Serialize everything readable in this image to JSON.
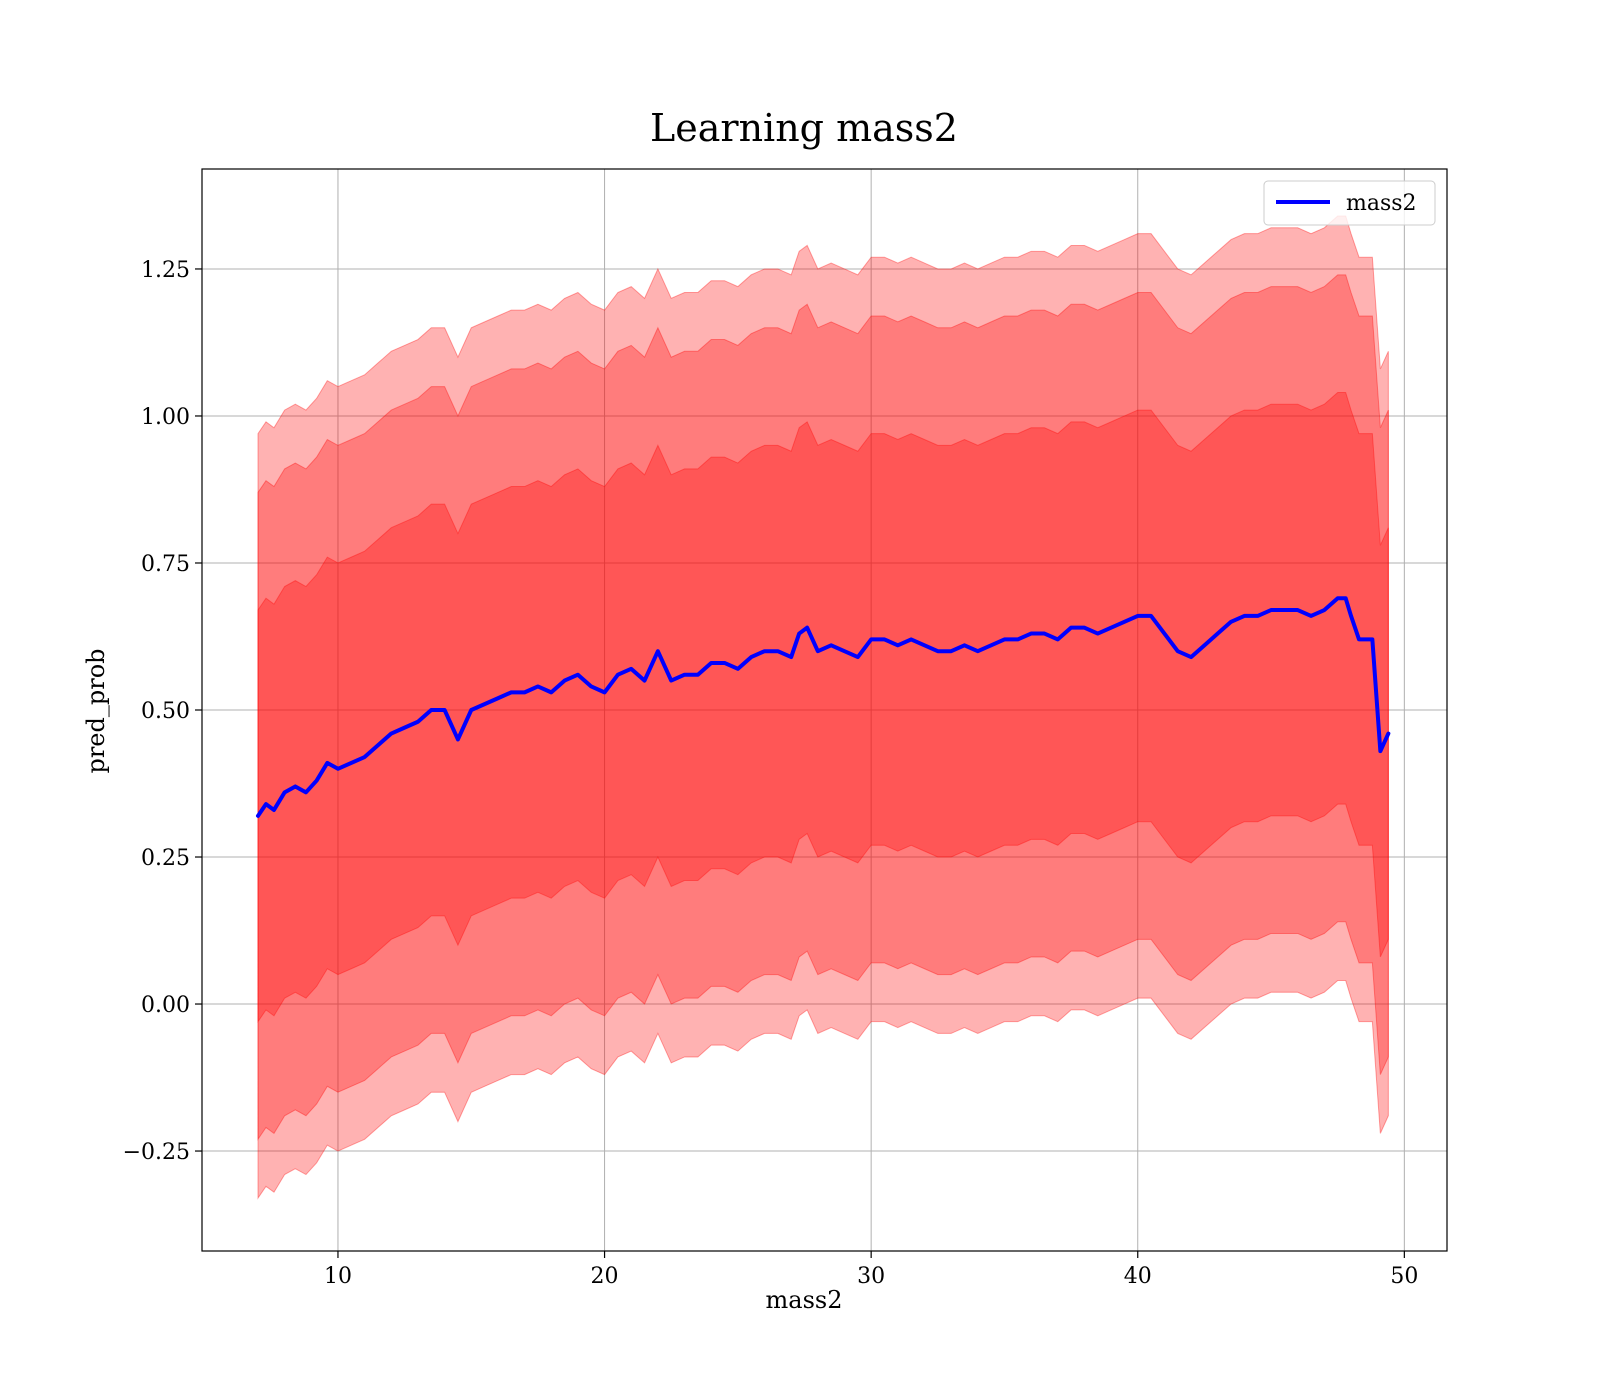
{
  "chart_data": {
    "type": "line",
    "title": "Learning mass2",
    "xlabel": "mass2",
    "ylabel": "pred_prob",
    "xlim": [
      4.9,
      51.6
    ],
    "ylim": [
      -0.42,
      1.42
    ],
    "xticks": [
      10,
      20,
      30,
      40,
      50
    ],
    "xtick_labels": [
      "10",
      "20",
      "30",
      "40",
      "50"
    ],
    "yticks": [
      -0.25,
      0.0,
      0.25,
      0.5,
      0.75,
      1.0,
      1.25
    ],
    "ytick_labels": [
      "−0.25",
      "0.00",
      "0.25",
      "0.50",
      "0.75",
      "1.00",
      "1.25"
    ],
    "grid": true,
    "legend": {
      "placement": "upper-right",
      "entries": [
        "mass2"
      ]
    },
    "colors": {
      "line": "#0000ff",
      "band": "#ff0000",
      "grid": "#b0b0b0",
      "axes": "#000000"
    },
    "band_half_widths": [
      0.35,
      0.55,
      0.65
    ],
    "band_opacity": 0.3,
    "series": [
      {
        "name": "mass2",
        "x": [
          7.0,
          7.3,
          7.6,
          8.0,
          8.4,
          8.8,
          9.2,
          9.6,
          10.0,
          10.5,
          11.0,
          11.5,
          12.0,
          12.5,
          13.0,
          13.5,
          14.0,
          14.5,
          15.0,
          15.5,
          16.0,
          16.5,
          17.0,
          17.5,
          18.0,
          18.5,
          19.0,
          19.5,
          20.0,
          20.5,
          21.0,
          21.5,
          22.0,
          22.5,
          23.0,
          23.5,
          24.0,
          24.5,
          25.0,
          25.5,
          26.0,
          26.5,
          27.0,
          27.3,
          27.6,
          28.0,
          28.5,
          29.0,
          29.5,
          30.0,
          30.5,
          31.0,
          31.5,
          32.0,
          32.5,
          33.0,
          33.5,
          34.0,
          34.5,
          35.0,
          35.5,
          36.0,
          36.5,
          37.0,
          37.5,
          38.0,
          38.5,
          39.0,
          39.5,
          40.0,
          40.5,
          41.0,
          41.5,
          42.0,
          42.5,
          43.0,
          43.5,
          44.0,
          44.5,
          45.0,
          45.5,
          46.0,
          46.5,
          47.0,
          47.5,
          47.8,
          48.0,
          48.3,
          48.8,
          49.1,
          49.4
        ],
        "y": [
          0.32,
          0.34,
          0.33,
          0.36,
          0.37,
          0.36,
          0.38,
          0.41,
          0.4,
          0.41,
          0.42,
          0.44,
          0.46,
          0.47,
          0.48,
          0.5,
          0.5,
          0.45,
          0.5,
          0.51,
          0.52,
          0.53,
          0.53,
          0.54,
          0.53,
          0.55,
          0.56,
          0.54,
          0.53,
          0.56,
          0.57,
          0.55,
          0.6,
          0.55,
          0.56,
          0.56,
          0.58,
          0.58,
          0.57,
          0.59,
          0.6,
          0.6,
          0.59,
          0.63,
          0.64,
          0.6,
          0.61,
          0.6,
          0.59,
          0.62,
          0.62,
          0.61,
          0.62,
          0.61,
          0.6,
          0.6,
          0.61,
          0.6,
          0.61,
          0.62,
          0.62,
          0.63,
          0.63,
          0.62,
          0.64,
          0.64,
          0.63,
          0.64,
          0.65,
          0.66,
          0.66,
          0.63,
          0.6,
          0.59,
          0.61,
          0.63,
          0.65,
          0.66,
          0.66,
          0.67,
          0.67,
          0.67,
          0.66,
          0.67,
          0.69,
          0.69,
          0.66,
          0.62,
          0.62,
          0.43,
          0.46
        ]
      }
    ]
  }
}
